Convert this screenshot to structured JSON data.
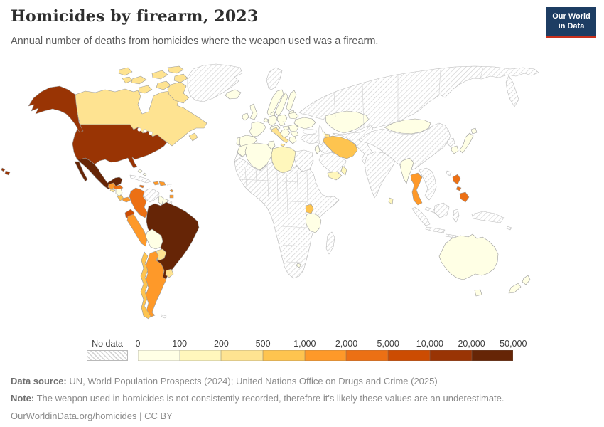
{
  "header": {
    "title": "Homicides by firearm, 2023",
    "subtitle": "Annual number of deaths from homicides where the weapon used was a firearm.",
    "logo_line1": "Our World",
    "logo_line2": "in Data",
    "brand": {
      "logo_bg": "#1D3D63",
      "logo_stripe": "#C9301C"
    }
  },
  "legend": {
    "no_data_label": "No data",
    "ticks": [
      "0",
      "100",
      "200",
      "500",
      "1,000",
      "2,000",
      "5,000",
      "10,000",
      "20,000",
      "50,000"
    ]
  },
  "footer": {
    "source_label": "Data source:",
    "source_text": "UN, World Population Prospects (2024); United Nations Office on Drugs and Crime (2025)",
    "note_label": "Note:",
    "note_text": "The weapon used in homicides is not consistently recorded, therefore it's likely these values are an underestimate.",
    "cc_line": "OurWorldinData.org/homicides | CC BY"
  },
  "chart_data": {
    "type": "heatmap",
    "subtype": "choropleth-world-map",
    "title": "Homicides by firearm, 2023",
    "year": "2023",
    "unit": "deaths",
    "colors": [
      "#FFFFE5",
      "#FFF7BC",
      "#FEE391",
      "#FEC44F",
      "#FE9929",
      "#EC7014",
      "#CC4C02",
      "#993404",
      "#662506"
    ],
    "bin_edges": [
      "0",
      "100",
      "200",
      "500",
      "1,000",
      "2,000",
      "5,000",
      "10,000",
      "20,000",
      "50,000"
    ],
    "bin_labels": [
      "0-100",
      "100-200",
      "200-500",
      "500-1,000",
      "1,000-2,000",
      "2,000-5,000",
      "5,000-10,000",
      "10,000-20,000",
      "20,000-50,000"
    ],
    "no_data_label": "No data",
    "regions": {
      "canada": {
        "label": "Canada",
        "band": 2
      },
      "united_states": {
        "label": "United States",
        "band": 7
      },
      "mexico": {
        "label": "Mexico",
        "band": 8
      },
      "guatemala": {
        "label": "Guatemala",
        "band": 4
      },
      "el_salvador": {
        "label": "El Salvador",
        "band": 2
      },
      "honduras": {
        "label": "Honduras",
        "band": 5
      },
      "nicaragua": {
        "label": "Nicaragua",
        "band": 0
      },
      "costa_rica": {
        "label": "Costa Rica",
        "band": 3
      },
      "panama": {
        "label": "Panama",
        "band": 4
      },
      "cuba": {
        "label": "Cuba",
        "band": -1
      },
      "jamaica": {
        "label": "Jamaica",
        "band": 5
      },
      "haiti": {
        "label": "Haiti",
        "band": 4
      },
      "dominican_republic": {
        "label": "Dominican Republic",
        "band": 4
      },
      "puerto_rico": {
        "label": "Puerto Rico",
        "band": -1
      },
      "bahamas": {
        "label": "Bahamas",
        "band": 0
      },
      "trinidad_tobago": {
        "label": "Trinidad and Tobago",
        "band": 4
      },
      "colombia": {
        "label": "Colombia",
        "band": 5
      },
      "venezuela": {
        "label": "Venezuela",
        "band": -1
      },
      "guyana": {
        "label": "Guyana",
        "band": 0
      },
      "suriname": {
        "label": "Suriname",
        "band": 0
      },
      "french_guiana": {
        "label": "French Guiana",
        "band": -1
      },
      "ecuador": {
        "label": "Ecuador",
        "band": 6
      },
      "peru": {
        "label": "Peru",
        "band": 4
      },
      "brazil": {
        "label": "Brazil",
        "band": 8
      },
      "bolivia": {
        "label": "Bolivia",
        "band": 0
      },
      "paraguay": {
        "label": "Paraguay",
        "band": 2
      },
      "uruguay": {
        "label": "Uruguay",
        "band": 2
      },
      "argentina": {
        "label": "Argentina",
        "band": 4
      },
      "chile": {
        "label": "Chile",
        "band": 3
      },
      "falkland_islands": {
        "label": "Falkland Islands",
        "band": -1
      },
      "greenland": {
        "label": "Greenland",
        "band": -1
      },
      "iceland": {
        "label": "Iceland",
        "band": 0
      },
      "ireland": {
        "label": "Ireland",
        "band": 0
      },
      "united_kingdom": {
        "label": "United Kingdom",
        "band": 0
      },
      "norway": {
        "label": "Norway",
        "band": 0
      },
      "sweden": {
        "label": "Sweden",
        "band": 0
      },
      "finland": {
        "label": "Finland",
        "band": 0
      },
      "denmark": {
        "label": "Denmark",
        "band": 0
      },
      "baltics": {
        "label": "Baltic states",
        "band": 0
      },
      "poland": {
        "label": "Poland",
        "band": 0
      },
      "germany": {
        "label": "Germany",
        "band": 0
      },
      "benelux": {
        "label": "Benelux",
        "band": 0
      },
      "france": {
        "label": "France",
        "band": 0
      },
      "spain": {
        "label": "Spain",
        "band": 0
      },
      "portugal": {
        "label": "Portugal",
        "band": 0
      },
      "switzerland_austria": {
        "label": "Switzerland and Austria",
        "band": 0
      },
      "czechia": {
        "label": "Czechia",
        "band": 0
      },
      "italy": {
        "label": "Italy",
        "band": 2
      },
      "hungary": {
        "label": "Hungary",
        "band": 0
      },
      "balkans": {
        "label": "Balkans",
        "band": 0
      },
      "romania": {
        "label": "Romania",
        "band": 0
      },
      "bulgaria": {
        "label": "Bulgaria",
        "band": 0
      },
      "greece": {
        "label": "Greece",
        "band": 0
      },
      "ukraine": {
        "label": "Ukraine",
        "band": 0
      },
      "belarus": {
        "label": "Belarus",
        "band": 0
      },
      "russia": {
        "label": "Russia",
        "band": -1
      },
      "svalbard": {
        "label": "Svalbard",
        "band": -1
      },
      "kazakhstan": {
        "label": "Kazakhstan",
        "band": 0
      },
      "georgia": {
        "label": "Georgia",
        "band": 0
      },
      "azerbaijan": {
        "label": "Azerbaijan",
        "band": 2
      },
      "turkey": {
        "label": "Turkey",
        "band": -1
      },
      "syria_iraq": {
        "label": "Syria and Iraq",
        "band": -1
      },
      "israel_jordan": {
        "label": "Israel and Jordan",
        "band": 0
      },
      "saudi_arabia": {
        "label": "Saudi Arabia",
        "band": -1
      },
      "yemen": {
        "label": "Yemen",
        "band": 1
      },
      "oman": {
        "label": "Oman",
        "band": 1
      },
      "iran": {
        "label": "Iran",
        "band": 3
      },
      "morocco": {
        "label": "Morocco",
        "band": 0
      },
      "western_sahara": {
        "label": "Western Sahara",
        "band": -1
      },
      "algeria": {
        "label": "Algeria",
        "band": 0
      },
      "tunisia": {
        "label": "Tunisia",
        "band": 0
      },
      "libya": {
        "label": "Libya",
        "band": 1
      },
      "egypt": {
        "label": "Egypt",
        "band": -1
      },
      "africa_other": {
        "label": "Other African countries",
        "band": -1
      },
      "uganda": {
        "label": "Uganda",
        "band": 3
      },
      "tanzania": {
        "label": "Tanzania",
        "band": 0
      },
      "lesotho": {
        "label": "Lesotho",
        "band": 0
      },
      "madagascar": {
        "label": "Madagascar",
        "band": -1
      },
      "central_asia": {
        "label": "Central Asia, Afghanistan and Pakistan",
        "band": -1
      },
      "india": {
        "label": "India",
        "band": -1
      },
      "sri_lanka": {
        "label": "Sri Lanka",
        "band": 1
      },
      "china": {
        "label": "China",
        "band": -1
      },
      "mongolia": {
        "label": "Mongolia",
        "band": 0
      },
      "north_korea": {
        "label": "North Korea",
        "band": -1
      },
      "south_korea": {
        "label": "South Korea",
        "band": 0
      },
      "japan": {
        "label": "Japan",
        "band": 0
      },
      "taiwan": {
        "label": "Taiwan",
        "band": -1
      },
      "myanmar": {
        "label": "Myanmar",
        "band": 0
      },
      "thailand": {
        "label": "Thailand",
        "band": 4
      },
      "indochina": {
        "label": "Vietnam, Laos and Cambodia",
        "band": -1
      },
      "malaysia": {
        "label": "Malaysia",
        "band": -1
      },
      "indonesia": {
        "label": "Indonesia",
        "band": -1
      },
      "new_guinea": {
        "label": "Papua New Guinea",
        "band": -1
      },
      "pacific_islands": {
        "label": "Pacific islands",
        "band": -1
      },
      "philippines": {
        "label": "Philippines",
        "band": 5
      },
      "australia": {
        "label": "Australia",
        "band": 0
      },
      "new_zealand": {
        "label": "New Zealand",
        "band": 0
      }
    }
  }
}
